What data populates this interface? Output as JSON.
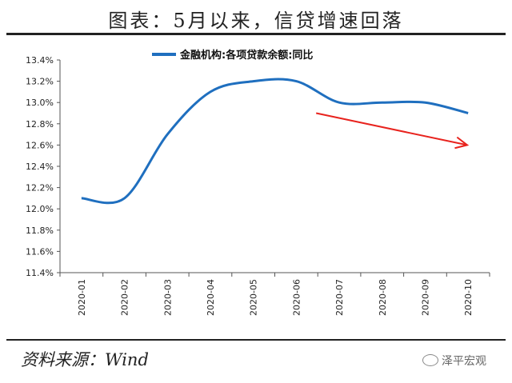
{
  "header": {
    "title": "图表：5月以来，信贷增速回落"
  },
  "footer": {
    "source": "资料来源：Wind",
    "watermark": "泽平宏观"
  },
  "chart_data": {
    "type": "line",
    "categories": [
      "2020-01",
      "2020-02",
      "2020-03",
      "2020-04",
      "2020-05",
      "2020-06",
      "2020-07",
      "2020-08",
      "2020-09",
      "2020-10"
    ],
    "series": [
      {
        "name": "金融机构:各项贷款余额:同比",
        "values": [
          12.1,
          12.1,
          12.7,
          13.1,
          13.2,
          13.2,
          13.0,
          13.0,
          13.0,
          12.9
        ],
        "color": "#1f6fbf"
      }
    ],
    "ylim": [
      11.4,
      13.4
    ],
    "yticks": [
      "11.4%",
      "11.6%",
      "11.8%",
      "12.0%",
      "12.2%",
      "12.4%",
      "12.6%",
      "12.8%",
      "13.0%",
      "13.2%",
      "13.4%"
    ],
    "legend_position": "top-center",
    "grid": false,
    "annotations": [
      {
        "type": "arrow",
        "color": "#e8231e",
        "from": [
          6.0,
          12.9
        ],
        "to": [
          10.0,
          12.6
        ]
      }
    ]
  }
}
